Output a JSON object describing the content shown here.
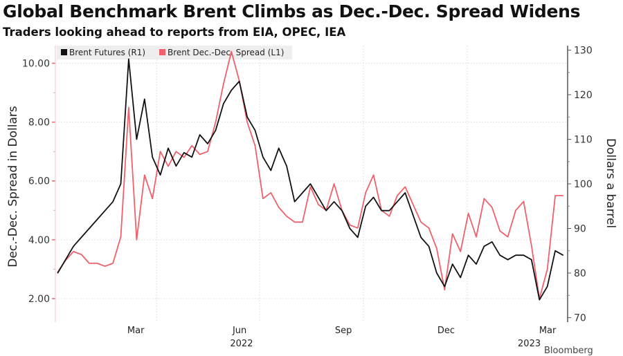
{
  "title": "Global Benchmark Brent Climbs as Dec.-Dec. Spread Widens",
  "subtitle": "Traders looking ahead to reports from EIA, OPEC, IEA",
  "source": "Bloomberg",
  "chart_data": {
    "type": "line",
    "title": "Global Benchmark Brent Climbs as Dec.-Dec. Spread Widens",
    "subtitle": "Traders looking ahead to reports from EIA, OPEC, IEA",
    "legend_position": "top-left",
    "legend": [
      "Brent Futures (R1)",
      "Brent Dec.-Dec. Spread (L1)"
    ],
    "x_ticks": [
      "Mar",
      "Jun",
      "Sep",
      "Dec",
      "Mar"
    ],
    "x_year_labels": [
      "2022",
      "2023"
    ],
    "x_range": [
      "2022-01-01",
      "2023-03-31"
    ],
    "left_axis": {
      "label": "Dec.-Dec. Spread in Dollars",
      "ticks": [
        "2.00",
        "4.00",
        "6.00",
        "8.00",
        "10.00"
      ],
      "range": [
        1.2,
        10.6
      ]
    },
    "right_axis": {
      "label": "Dollars a barrel",
      "ticks": [
        "70",
        "80",
        "90",
        "100",
        "110",
        "120",
        "130"
      ],
      "range": [
        69,
        131
      ]
    },
    "grid": true,
    "colors": {
      "brent": "#111111",
      "spread": "#f0606a"
    },
    "x": [
      "2022-01-03",
      "2022-01-10",
      "2022-01-17",
      "2022-01-24",
      "2022-01-31",
      "2022-02-07",
      "2022-02-14",
      "2022-02-21",
      "2022-02-28",
      "2022-03-07",
      "2022-03-14",
      "2022-03-21",
      "2022-03-28",
      "2022-04-04",
      "2022-04-11",
      "2022-04-18",
      "2022-04-25",
      "2022-05-02",
      "2022-05-09",
      "2022-05-16",
      "2022-05-23",
      "2022-05-30",
      "2022-06-06",
      "2022-06-13",
      "2022-06-20",
      "2022-06-27",
      "2022-07-04",
      "2022-07-11",
      "2022-07-18",
      "2022-07-25",
      "2022-08-01",
      "2022-08-08",
      "2022-08-15",
      "2022-08-22",
      "2022-08-29",
      "2022-09-05",
      "2022-09-12",
      "2022-09-19",
      "2022-09-26",
      "2022-10-03",
      "2022-10-10",
      "2022-10-17",
      "2022-10-24",
      "2022-10-31",
      "2022-11-07",
      "2022-11-14",
      "2022-11-21",
      "2022-11-28",
      "2022-12-05",
      "2022-12-12",
      "2022-12-19",
      "2022-12-26",
      "2023-01-02",
      "2023-01-09",
      "2023-01-16",
      "2023-01-23",
      "2023-01-30",
      "2023-02-06",
      "2023-02-13",
      "2023-02-20",
      "2023-02-27",
      "2023-03-06",
      "2023-03-13",
      "2023-03-20",
      "2023-03-27"
    ],
    "series": [
      {
        "name": "Brent Futures (R1)",
        "axis": "right",
        "values": [
          80,
          83,
          86,
          88,
          90,
          92,
          94,
          96,
          100,
          128,
          110,
          119,
          106,
          102,
          108,
          104,
          107,
          106,
          111,
          109,
          112,
          118,
          121,
          123,
          115,
          112,
          106,
          103,
          108,
          104,
          96,
          98,
          100,
          97,
          94,
          96,
          94,
          90,
          88,
          95,
          97,
          94,
          94,
          96,
          98,
          93,
          88,
          86,
          80,
          77,
          82,
          79,
          84,
          82,
          86,
          87,
          84,
          83,
          84,
          84,
          83,
          74,
          77,
          85,
          84
        ],
        "unit": "USD/bbl"
      },
      {
        "name": "Brent Dec.-Dec. Spread (L1)",
        "axis": "left",
        "values": [
          2.9,
          3.3,
          3.6,
          3.5,
          3.2,
          3.2,
          3.1,
          3.2,
          4.1,
          8.5,
          4.0,
          6.2,
          5.4,
          7.0,
          6.5,
          7.0,
          6.8,
          7.2,
          6.9,
          7.0,
          8.0,
          9.3,
          10.4,
          9.4,
          8.0,
          7.2,
          5.4,
          5.6,
          5.1,
          4.8,
          4.6,
          4.6,
          5.8,
          5.2,
          5.0,
          5.9,
          5.0,
          4.5,
          4.4,
          5.6,
          6.2,
          5.0,
          4.8,
          5.5,
          5.8,
          5.2,
          4.6,
          4.4,
          3.7,
          2.3,
          4.2,
          3.6,
          4.9,
          4.1,
          5.4,
          5.1,
          4.3,
          4.1,
          5.0,
          5.3,
          3.8,
          2.0,
          3.0,
          5.5,
          5.5
        ],
        "unit": "USD"
      }
    ]
  }
}
